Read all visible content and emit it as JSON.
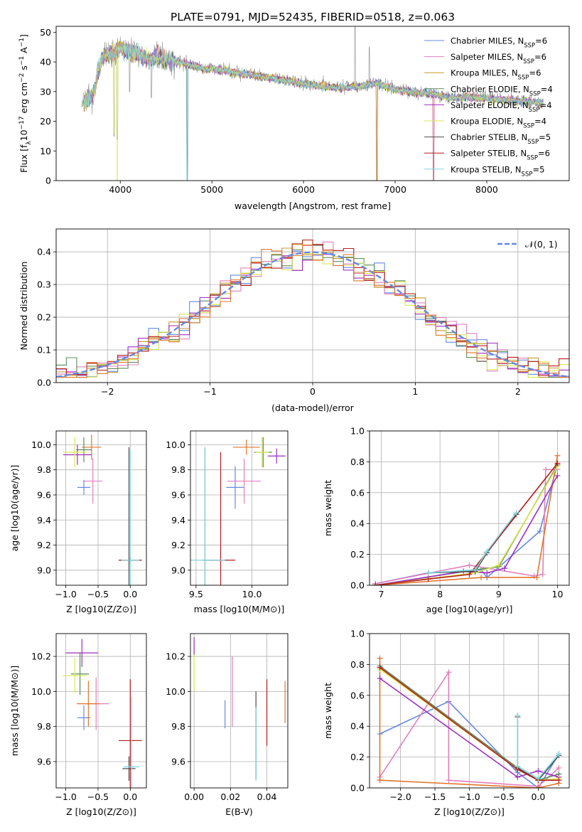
{
  "figure_title": "PLATE=0791, MJD=52435, FIBERID=0518, z=0.063",
  "series_colors": [
    "#6489e3",
    "#e17fbd",
    "#c39a30",
    "#5c8c5c",
    "#9d2fc1",
    "#d8e84c",
    "#514a4a",
    "#b51c1c",
    "#7ed7df"
  ],
  "chart_data": [
    {
      "id": "spectrum",
      "type": "line",
      "title": "PLATE=0791, MJD=52435, FIBERID=0518, z=0.063",
      "xlabel": "wavelength [Angstrom, rest frame]",
      "ylabel": "Flux [f_λ 10^-17 erg cm^-2 s^-1 A^-1]",
      "xlim": [
        3300,
        8900
      ],
      "ylim": [
        0,
        52
      ],
      "xticks": [
        4000,
        5000,
        6000,
        7000,
        8000
      ],
      "yticks": [
        0,
        10,
        20,
        30,
        40,
        50
      ],
      "grid": false,
      "legend_position": "top-right",
      "legend": [
        {
          "name": "Chabrier MILES, N_SSP=6",
          "color": "#6489e3"
        },
        {
          "name": "Salpeter MILES, N_SSP=6",
          "color": "#e17fbd"
        },
        {
          "name": "Kroupa MILES, N_SSP=6",
          "color": "#c39a30"
        },
        {
          "name": "Chabrier ELODIE, N_SSP=4",
          "color": "#5c8c5c"
        },
        {
          "name": "Salpeter ELODIE, N_SSP=4",
          "color": "#9d2fc1"
        },
        {
          "name": "Kroupa ELODIE, N_SSP=4",
          "color": "#d8e84c"
        },
        {
          "name": "Chabrier STELIB, N_SSP=5",
          "color": "#514a4a"
        },
        {
          "name": "Salpeter STELIB, N_SSP=6",
          "color": "#b51c1c"
        },
        {
          "name": "Kroupa STELIB, N_SSP=5",
          "color": "#7ed7df"
        }
      ],
      "data_envelope": {
        "x": [
          3600,
          3700,
          3800,
          3900,
          4000,
          4100,
          4200,
          4300,
          4400,
          4500,
          4600,
          4700,
          4800,
          4900,
          5000,
          5200,
          5400,
          5600,
          5800,
          6000,
          6200,
          6400,
          6600,
          6800,
          7000,
          7200,
          7400,
          7600,
          7800,
          8000,
          8200,
          8400,
          8600
        ],
        "y": [
          27,
          29,
          42,
          43,
          45,
          44,
          43,
          41,
          42,
          41,
          40,
          40,
          39,
          38,
          38,
          37,
          36,
          35,
          34,
          33,
          32,
          31.5,
          32,
          33,
          31,
          30,
          29.5,
          28,
          28.5,
          28,
          27.5,
          27,
          26.5
        ]
      },
      "absorption_features": [
        {
          "x": 3933,
          "y": 15
        },
        {
          "x": 3968,
          "y": 14
        },
        {
          "x": 4102,
          "y": 30
        },
        {
          "x": 4340,
          "y": 28
        },
        {
          "x": 4730,
          "y": 0
        },
        {
          "x": 6800,
          "y": 0
        },
        {
          "x": 7420,
          "y": 0
        }
      ],
      "emission_features": [
        {
          "x": 6563,
          "y": 70
        },
        {
          "x": 6718,
          "y": 45
        }
      ]
    },
    {
      "id": "residual_hist",
      "type": "histogram",
      "xlabel": "(data-model)/error",
      "ylabel": "Normed distribution",
      "xlim": [
        -2.5,
        2.5
      ],
      "ylim": [
        0,
        0.47
      ],
      "xticks": [
        -2,
        -1,
        0,
        1,
        2
      ],
      "yticks": [
        0.0,
        0.1,
        0.2,
        0.3,
        0.4
      ],
      "grid": true,
      "legend_position": "top-right",
      "legend": [
        {
          "name": "𝒩(0, 1)",
          "color": "#6489e3",
          "style": "dashed"
        }
      ],
      "reference_curve": "standard normal N(0,1)",
      "bin_width": 0.1,
      "histogram_series_colors": [
        "#6489e3",
        "#e17fbd",
        "#c39a30",
        "#5c8c5c",
        "#9d2fc1",
        "#d8e84c",
        "#b51c1c",
        "#e0762c"
      ],
      "hist_max": 0.457,
      "hist_min_edge": 0.016
    },
    {
      "id": "z_vs_age",
      "type": "scatter",
      "xlabel": "Z [log10(Z/Z⊙)]",
      "ylabel": "age  [log10(age/yr)]",
      "xlim": [
        -1.15,
        0.25
      ],
      "ylim": [
        8.88,
        10.11
      ],
      "xticks": [
        -1.0,
        -0.5,
        0.0
      ],
      "yticks": [
        9.0,
        9.2,
        9.4,
        9.6,
        9.8,
        10.0
      ],
      "grid": true,
      "points": [
        {
          "x": -0.72,
          "y": 9.66,
          "xerr": 0.1,
          "yerr": 0.06,
          "color": "#6489e3"
        },
        {
          "x": -0.58,
          "y": 9.71,
          "xerr": 0.15,
          "yerr": 0.18,
          "color": "#e17fbd"
        },
        {
          "x": -0.6,
          "y": 9.98,
          "xerr": 0.15,
          "yerr": 0.1,
          "color": "#e0762c"
        },
        {
          "x": -0.72,
          "y": 9.96,
          "xerr": 0.12,
          "yerr": 0.1,
          "color": "#5c8c5c"
        },
        {
          "x": -0.82,
          "y": 9.92,
          "xerr": 0.22,
          "yerr": 0.08,
          "color": "#9d2fc1"
        },
        {
          "x": -0.86,
          "y": 9.94,
          "xerr": 0.18,
          "yerr": 0.12,
          "color": "#d8e84c"
        },
        {
          "x": -0.02,
          "y": 9.08,
          "xerr": 0.14,
          "yerr": 0.9,
          "color": "#514a4a"
        },
        {
          "x": 0.0,
          "y": 9.08,
          "xerr": 0.18,
          "yerr": 0.02,
          "color": "#b51c1c"
        },
        {
          "x": 0.0,
          "y": 9.08,
          "xerr": 0.14,
          "yerr": 0.88,
          "color": "#7ed7df"
        }
      ]
    },
    {
      "id": "mass_vs_age",
      "type": "scatter",
      "xlabel": "mass [log10(M/M⊙)]",
      "ylabel": "",
      "xlim": [
        9.45,
        10.32
      ],
      "ylim": [
        8.88,
        10.11
      ],
      "xticks": [
        9.5,
        10.0
      ],
      "yticks": [
        9.0,
        9.2,
        9.4,
        9.6,
        9.8,
        10.0
      ],
      "grid": true,
      "points": [
        {
          "x": 9.85,
          "y": 9.66,
          "xerr": 0.08,
          "yerr": 0.17,
          "color": "#6489e3"
        },
        {
          "x": 9.93,
          "y": 9.71,
          "xerr": 0.15,
          "yerr": 0.18,
          "color": "#e17fbd"
        },
        {
          "x": 9.95,
          "y": 9.98,
          "xerr": 0.12,
          "yerr": 0.06,
          "color": "#e0762c"
        },
        {
          "x": 10.1,
          "y": 9.94,
          "xerr": 0.08,
          "yerr": 0.12,
          "color": "#5c8c5c"
        },
        {
          "x": 10.22,
          "y": 9.91,
          "xerr": 0.08,
          "yerr": 0.06,
          "color": "#9d2fc1"
        },
        {
          "x": 10.09,
          "y": 9.94,
          "xerr": 0.06,
          "yerr": 0.12,
          "color": "#d8e84c"
        },
        {
          "x": 9.58,
          "y": 9.08,
          "xerr": 0.02,
          "yerr": 0.9,
          "color": "#514a4a"
        },
        {
          "x": 9.72,
          "y": 9.08,
          "xerr": 0.13,
          "yerr": 0.86,
          "color": "#b51c1c"
        },
        {
          "x": 9.58,
          "y": 9.08,
          "xerr": 0.18,
          "yerr": 0.9,
          "color": "#7ed7df"
        }
      ]
    },
    {
      "id": "age_vs_massweight",
      "type": "line",
      "xlabel": "age  [log10(age/yr)]",
      "ylabel": "mass weight",
      "xlim": [
        6.8,
        10.2
      ],
      "ylim": [
        0.0,
        1.0
      ],
      "xticks": [
        7,
        8,
        9,
        10
      ],
      "yticks": [
        0.0,
        0.2,
        0.4,
        0.6,
        0.8,
        1.0
      ],
      "grid": true,
      "series": [
        {
          "color": "#6489e3",
          "x": [
            6.9,
            7.8,
            8.7,
            8.8,
            9.7,
            10.0
          ],
          "y": [
            0.01,
            0.08,
            0.1,
            0.05,
            0.35,
            0.79
          ]
        },
        {
          "color": "#e17fbd",
          "x": [
            6.9,
            8.5,
            9.6,
            9.75,
            9.8,
            10.0
          ],
          "y": [
            0.01,
            0.13,
            0.06,
            0.07,
            0.75,
            0.75
          ]
        },
        {
          "color": "#e0762c",
          "x": [
            6.9,
            8.7,
            9.65,
            10.0
          ],
          "y": [
            0.0,
            0.05,
            0.05,
            0.84
          ]
        },
        {
          "color": "#5c8c5c",
          "x": [
            6.9,
            8.6,
            9.0,
            10.0
          ],
          "y": [
            0.0,
            0.1,
            0.12,
            0.78
          ]
        },
        {
          "color": "#9d2fc1",
          "x": [
            6.9,
            8.4,
            8.8,
            9.1,
            10.0
          ],
          "y": [
            0.0,
            0.09,
            0.08,
            0.11,
            0.71
          ]
        },
        {
          "color": "#d8e84c",
          "x": [
            6.9,
            8.6,
            9.0,
            10.0
          ],
          "y": [
            0.0,
            0.08,
            0.13,
            0.77
          ]
        },
        {
          "color": "#514a4a",
          "x": [
            7.8,
            8.6,
            8.8,
            9.3
          ],
          "y": [
            0.08,
            0.09,
            0.21,
            0.46
          ]
        },
        {
          "color": "#b51c1c",
          "x": [
            6.9,
            7.8,
            8.5,
            10.0
          ],
          "y": [
            0.0,
            0.04,
            0.07,
            0.79
          ]
        },
        {
          "color": "#7ed7df",
          "x": [
            7.8,
            8.6,
            8.8,
            9.3
          ],
          "y": [
            0.08,
            0.1,
            0.22,
            0.47
          ]
        }
      ]
    },
    {
      "id": "z_vs_mass",
      "type": "scatter",
      "xlabel": "Z [log10(Z/Z⊙)]",
      "ylabel": "mass [log10(M/M⊙)]",
      "xlim": [
        -1.15,
        0.25
      ],
      "ylim": [
        9.45,
        10.33
      ],
      "xticks": [
        -1.0,
        -0.5,
        0.0
      ],
      "yticks": [
        9.6,
        9.8,
        10.0,
        10.2
      ],
      "grid": true,
      "points": [
        {
          "x": -0.72,
          "y": 9.85,
          "xerr": 0.1,
          "yerr": 0.07,
          "color": "#6489e3"
        },
        {
          "x": -0.53,
          "y": 9.93,
          "xerr": 0.2,
          "yerr": 0.15,
          "color": "#e17fbd"
        },
        {
          "x": -0.65,
          "y": 9.93,
          "xerr": 0.18,
          "yerr": 0.13,
          "color": "#e0762c"
        },
        {
          "x": -0.78,
          "y": 10.1,
          "xerr": 0.14,
          "yerr": 0.12,
          "color": "#5c8c5c"
        },
        {
          "x": -0.75,
          "y": 10.22,
          "xerr": 0.25,
          "yerr": 0.08,
          "color": "#9d2fc1"
        },
        {
          "x": -0.86,
          "y": 10.09,
          "xerr": 0.19,
          "yerr": 0.1,
          "color": "#d8e84c"
        },
        {
          "x": -0.02,
          "y": 9.56,
          "xerr": 0.1,
          "yerr": 0.07,
          "color": "#514a4a"
        },
        {
          "x": 0.0,
          "y": 9.72,
          "xerr": 0.18,
          "yerr": 0.35,
          "color": "#b51c1c"
        },
        {
          "x": 0.02,
          "y": 9.57,
          "xerr": 0.12,
          "yerr": 0.4,
          "color": "#7ed7df"
        }
      ]
    },
    {
      "id": "ebv_vs_mass",
      "type": "scatter",
      "xlabel": "E(B-V)",
      "ylabel": "",
      "xlim": [
        -0.002,
        0.0515
      ],
      "ylim": [
        9.45,
        10.33
      ],
      "xticks": [
        0.0,
        0.02,
        0.04
      ],
      "yticks": [
        9.6,
        9.8,
        10.0,
        10.2
      ],
      "grid": true,
      "points": [
        {
          "x": 0.017,
          "y": 9.87,
          "yerr": 0.08,
          "color": "#6489e3"
        },
        {
          "x": 0.021,
          "y": 10.0,
          "yerr": 0.2,
          "color": "#e17fbd"
        },
        {
          "x": 0.05,
          "y": 9.94,
          "yerr": 0.12,
          "color": "#e0762c"
        },
        {
          "x": 0.0,
          "y": 10.15,
          "yerr": 0.15,
          "color": "#d8e84c"
        },
        {
          "x": 0.0,
          "y": 10.26,
          "yerr": 0.05,
          "color": "#9d2fc1"
        },
        {
          "x": 0.034,
          "y": 9.75,
          "yerr": 0.25,
          "color": "#514a4a"
        },
        {
          "x": 0.04,
          "y": 9.88,
          "yerr": 0.19,
          "color": "#b51c1c"
        },
        {
          "x": 0.034,
          "y": 9.7,
          "yerr": 0.21,
          "color": "#7ed7df"
        }
      ]
    },
    {
      "id": "z_vs_massweight",
      "type": "line",
      "xlabel": "Z [log10(Z/Z⊙)]",
      "ylabel": "mass weight",
      "xlim": [
        -2.45,
        0.45
      ],
      "ylim": [
        0.0,
        1.0
      ],
      "xticks": [
        -2.0,
        -1.5,
        -1.0,
        -0.5,
        0.0
      ],
      "yticks": [
        0.0,
        0.2,
        0.4,
        0.6,
        0.8,
        1.0
      ],
      "grid": true,
      "series": [
        {
          "color": "#6489e3",
          "x": [
            -2.3,
            -1.3,
            -0.3,
            0.0,
            0.3
          ],
          "y": [
            0.35,
            0.56,
            0.1,
            0.0,
            0.22
          ]
        },
        {
          "color": "#e17fbd",
          "x": [
            -2.3,
            -1.3,
            -1.3,
            0.0,
            0.3
          ],
          "y": [
            0.07,
            0.75,
            0.05,
            0.01,
            0.13
          ]
        },
        {
          "color": "#e0762c",
          "x": [
            -2.3,
            -2.3,
            -2.3,
            0.0,
            0.3
          ],
          "y": [
            0.05,
            0.84,
            0.05,
            0.0,
            0.03
          ]
        },
        {
          "color": "#5c8c5c",
          "x": [
            -2.3,
            -0.3,
            0.0,
            0.3
          ],
          "y": [
            0.79,
            0.13,
            0.05,
            0.09
          ]
        },
        {
          "color": "#9d2fc1",
          "x": [
            -2.3,
            -0.3,
            0.0,
            0.3
          ],
          "y": [
            0.71,
            0.07,
            0.11,
            0.07
          ]
        },
        {
          "color": "#d8e84c",
          "x": [
            -2.3,
            -0.3,
            0.0,
            0.3
          ],
          "y": [
            0.77,
            0.12,
            0.05,
            0.06
          ]
        },
        {
          "color": "#514a4a",
          "x": [
            -0.3,
            -0.3,
            0.0,
            0.3
          ],
          "y": [
            0.46,
            0.13,
            0.05,
            0.21
          ]
        },
        {
          "color": "#b51c1c",
          "x": [
            -2.3,
            -0.3,
            0.0,
            0.3
          ],
          "y": [
            0.78,
            0.12,
            0.05,
            0.05
          ]
        },
        {
          "color": "#7ed7df",
          "x": [
            -0.3,
            -0.3,
            0.0,
            0.3
          ],
          "y": [
            0.47,
            0.14,
            0.06,
            0.22
          ]
        }
      ]
    }
  ]
}
